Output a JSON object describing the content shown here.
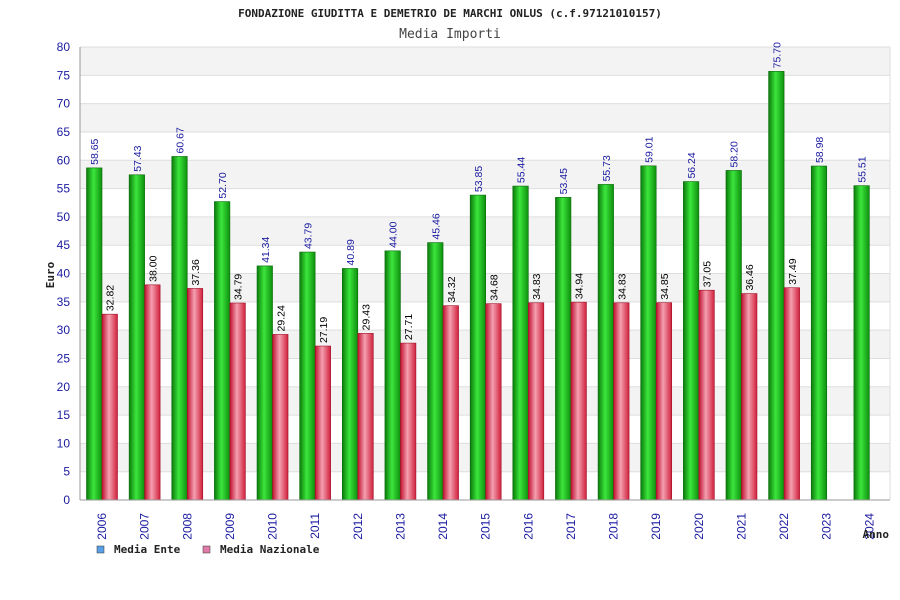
{
  "chart_data": {
    "type": "bar",
    "title": "FONDAZIONE GIUDITTA E DEMETRIO DE MARCHI ONLUS (c.f.97121010157)",
    "subtitle": "Media Importi",
    "xlabel": "Anno",
    "ylabel": "Euro",
    "ylim": [
      0,
      80
    ],
    "ytick_step": 5,
    "grid": true,
    "legend_position": "bottom-left",
    "categories": [
      "2006",
      "2007",
      "2008",
      "2009",
      "2010",
      "2011",
      "2012",
      "2013",
      "2014",
      "2015",
      "2016",
      "2017",
      "2018",
      "2019",
      "2020",
      "2021",
      "2022",
      "2023",
      "2024"
    ],
    "series": [
      {
        "name": "Media Ente",
        "color": "#1faa1f",
        "legend_color": "#5aa0e6",
        "values": [
          58.65,
          57.43,
          60.67,
          52.7,
          41.34,
          43.79,
          40.89,
          44.0,
          45.46,
          53.85,
          55.44,
          53.45,
          55.73,
          59.01,
          56.24,
          58.2,
          75.7,
          58.98,
          55.51
        ],
        "labels": [
          "58.65",
          "57.43",
          "60.67",
          "52.70",
          "41.34",
          "43.79",
          "40.89",
          "44.00",
          "45.46",
          "53.85",
          "55.44",
          "53.45",
          "55.73",
          "59.01",
          "56.24",
          "58.20",
          "75.70",
          "58.98",
          "55.51"
        ]
      },
      {
        "name": "Media Nazionale",
        "color": "#e8304a",
        "legend_color": "#e07aa8",
        "values": [
          32.82,
          38.0,
          37.36,
          34.79,
          29.24,
          27.19,
          29.43,
          27.71,
          34.32,
          34.68,
          34.83,
          34.94,
          34.83,
          34.85,
          37.05,
          36.46,
          37.49,
          null,
          null
        ],
        "labels": [
          "32.82",
          "38.00",
          "37.36",
          "34.79",
          "29.24",
          "27.19",
          "29.43",
          "27.71",
          "34.32",
          "34.68",
          "34.83",
          "34.94",
          "34.83",
          "34.85",
          "37.05",
          "36.46",
          "37.49",
          null,
          null
        ]
      }
    ]
  }
}
